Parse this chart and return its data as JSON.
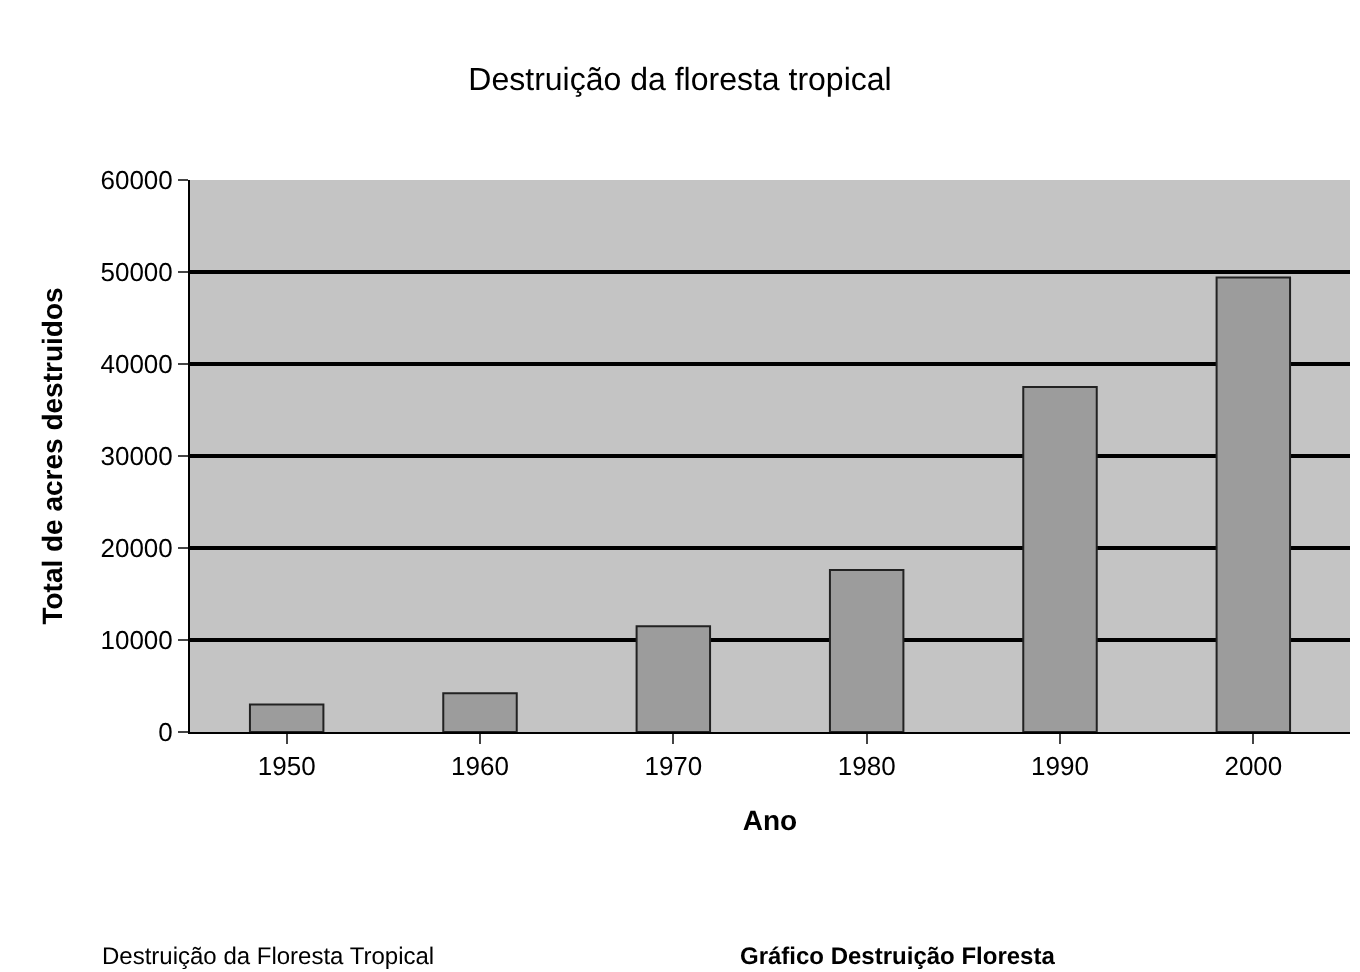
{
  "chart_data": {
    "type": "bar",
    "title": "Destruição da floresta tropical",
    "xlabel": "Ano",
    "ylabel": "Total de acres destruidos",
    "categories": [
      "1950",
      "1960",
      "1970",
      "1980",
      "1990",
      "2000"
    ],
    "values": [
      3000,
      4200,
      11500,
      17600,
      37500,
      49400
    ],
    "color": "#9c9c9c",
    "ylim": [
      0,
      60000
    ],
    "yticks": [
      0,
      10000,
      20000,
      30000,
      40000,
      50000,
      60000
    ],
    "grid": "y",
    "annotations": [
      "Destruição da Floresta Tropical",
      "Gráfico Destruição Floresta"
    ]
  }
}
